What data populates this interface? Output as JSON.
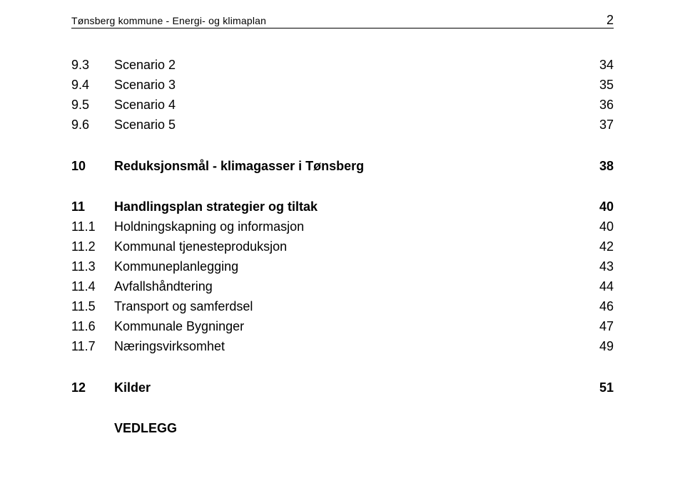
{
  "header": {
    "doc_title": "Tønsberg kommune - Energi- og klimaplan",
    "page_number": "2"
  },
  "toc": {
    "group1": [
      {
        "num": "9.3",
        "label": "Scenario 2",
        "page": "34"
      },
      {
        "num": "9.4",
        "label": "Scenario 3",
        "page": "35"
      },
      {
        "num": "9.5",
        "label": "Scenario 4",
        "page": "36"
      },
      {
        "num": "9.6",
        "label": "Scenario 5",
        "page": "37"
      }
    ],
    "section10": {
      "num": "10",
      "label": "Reduksjonsmål - klimagasser i Tønsberg",
      "page": "38"
    },
    "section11": {
      "num": "11",
      "label": "Handlingsplan strategier og tiltak",
      "page": "40"
    },
    "group11": [
      {
        "num": "11.1",
        "label": "Holdningskapning og informasjon",
        "page": "40"
      },
      {
        "num": "11.2",
        "label": "Kommunal tjenesteproduksjon",
        "page": "42"
      },
      {
        "num": "11.3",
        "label": "Kommuneplanlegging",
        "page": "43"
      },
      {
        "num": "11.4",
        "label": "Avfallshåndtering",
        "page": "44"
      },
      {
        "num": "11.5",
        "label": "Transport og samferdsel",
        "page": "46"
      },
      {
        "num": "11.6",
        "label": "Kommunale Bygninger",
        "page": "47"
      },
      {
        "num": "11.7",
        "label": "Næringsvirksomhet",
        "page": "49"
      }
    ],
    "section12": {
      "num": "12",
      "label": "Kilder",
      "page": "51"
    },
    "vedlegg": {
      "num": "",
      "label": "VEDLEGG",
      "page": ""
    }
  }
}
